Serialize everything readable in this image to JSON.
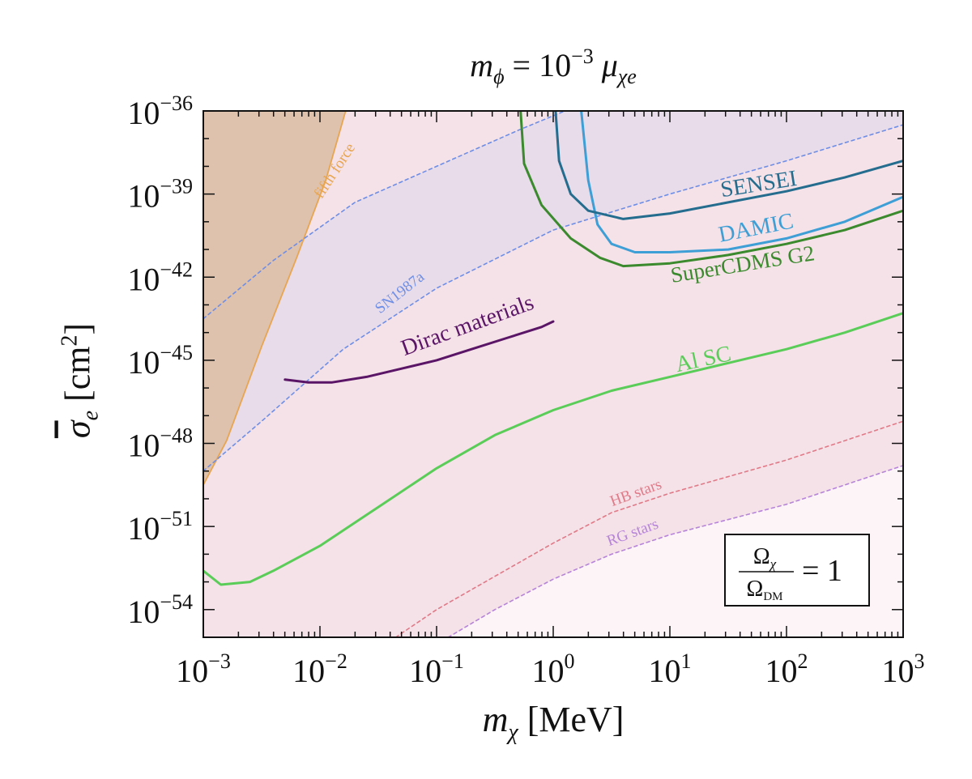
{
  "chart_data": {
    "type": "line",
    "title": {
      "base": "m",
      "sub": "ϕ",
      "middle": " = 10",
      "exp": "−3",
      "mu": " μ",
      "mu_sub": "χe"
    },
    "xlabel": {
      "base": "m",
      "sub": "χ",
      "unit": " [MeV]"
    },
    "ylabel": {
      "base": "σ",
      "sub": "e",
      "unit": " [cm",
      "exp": "2",
      "close": "]"
    },
    "x_scale": "log",
    "y_scale": "log",
    "xlim_log10": [
      -3,
      3
    ],
    "ylim_log10": [
      -55,
      -36
    ],
    "x_ticks": [
      {
        "log": -3,
        "base": "10",
        "exp": "−3"
      },
      {
        "log": -2,
        "base": "10",
        "exp": "−2"
      },
      {
        "log": -1,
        "base": "10",
        "exp": "−1"
      },
      {
        "log": 0,
        "base": "10",
        "exp": "0"
      },
      {
        "log": 1,
        "base": "10",
        "exp": "1"
      },
      {
        "log": 2,
        "base": "10",
        "exp": "2"
      },
      {
        "log": 3,
        "base": "10",
        "exp": "3"
      }
    ],
    "y_ticks": [
      {
        "log": -36,
        "base": "10",
        "exp": "−36"
      },
      {
        "log": -39,
        "base": "10",
        "exp": "−39"
      },
      {
        "log": -42,
        "base": "10",
        "exp": "−42"
      },
      {
        "log": -45,
        "base": "10",
        "exp": "−45"
      },
      {
        "log": -48,
        "base": "10",
        "exp": "−48"
      },
      {
        "log": -51,
        "base": "10",
        "exp": "−51"
      },
      {
        "log": -54,
        "base": "10",
        "exp": "−54"
      }
    ],
    "colors": {
      "background_region": "#f5e1e8",
      "fifth_force_fill": "#dfc2ad",
      "fifth_force_line": "#e8a550",
      "sn_fill": "#e8dcea",
      "sn_line": "#6e8ee6",
      "hb_line": "#e07a87",
      "rg_line": "#b684d8",
      "rg_fill": "#fdf4f8",
      "sensei": "#256d8f",
      "damic": "#3d9fd6",
      "supercdms": "#3b8a2d",
      "al_sc": "#5acd58",
      "dirac": "#5b1567"
    },
    "series": [
      {
        "name": "fifth force",
        "style": "solid-boundary",
        "color": "#e8a550",
        "points": [
          [
            -3,
            -49.5
          ],
          [
            -2.8,
            -47.9
          ],
          [
            -2.5,
            -44.5
          ],
          [
            -2.2,
            -41.3
          ],
          [
            -1.95,
            -38.5
          ],
          [
            -1.78,
            -36
          ]
        ]
      },
      {
        "name": "SN1987a (upper)",
        "style": "dashed",
        "color": "#6e8ee6",
        "points": [
          [
            -3,
            -43.5
          ],
          [
            -2.4,
            -41.4
          ],
          [
            -1.7,
            -39.3
          ],
          [
            -1.0,
            -38.0
          ],
          [
            -0.3,
            -36.7
          ],
          [
            0.1,
            -36.0
          ]
        ]
      },
      {
        "name": "SN1987a (lower)",
        "style": "dashed",
        "color": "#6e8ee6",
        "points": [
          [
            -3,
            -49.0
          ],
          [
            -2.5,
            -47.2
          ],
          [
            -1.8,
            -44.6
          ],
          [
            -1.0,
            -42.4
          ],
          [
            0,
            -40.3
          ],
          [
            1,
            -39.0
          ],
          [
            2,
            -37.8
          ],
          [
            3,
            -36.5
          ]
        ]
      },
      {
        "name": "HB stars",
        "style": "dashed",
        "color": "#e07a87",
        "points": [
          [
            -1.35,
            -55
          ],
          [
            -1.0,
            -54.0
          ],
          [
            -0.5,
            -52.8
          ],
          [
            0,
            -51.6
          ],
          [
            0.5,
            -50.5
          ],
          [
            1,
            -49.8
          ],
          [
            2,
            -48.6
          ],
          [
            3,
            -47.2
          ]
        ]
      },
      {
        "name": "RG stars",
        "style": "dashed",
        "color": "#b684d8",
        "points": [
          [
            -0.9,
            -55
          ],
          [
            -0.5,
            -54.0
          ],
          [
            0,
            -52.9
          ],
          [
            0.5,
            -52.0
          ],
          [
            1,
            -51.3
          ],
          [
            2,
            -50.2
          ],
          [
            3,
            -48.8
          ]
        ]
      },
      {
        "name": "Dirac materials",
        "style": "solid",
        "color": "#5b1567",
        "points": [
          [
            -2.3,
            -45.7
          ],
          [
            -2.1,
            -45.8
          ],
          [
            -1.9,
            -45.8
          ],
          [
            -1.6,
            -45.6
          ],
          [
            -1.3,
            -45.3
          ],
          [
            -1.0,
            -45.0
          ],
          [
            -0.7,
            -44.6
          ],
          [
            -0.4,
            -44.2
          ],
          [
            -0.1,
            -43.8
          ],
          [
            0,
            -43.6
          ]
        ]
      },
      {
        "name": "Al SC",
        "style": "solid",
        "color": "#5acd58",
        "points": [
          [
            -3,
            -52.6
          ],
          [
            -2.85,
            -53.1
          ],
          [
            -2.6,
            -53.0
          ],
          [
            -2.4,
            -52.6
          ],
          [
            -2.0,
            -51.7
          ],
          [
            -1.5,
            -50.3
          ],
          [
            -1.0,
            -48.9
          ],
          [
            -0.5,
            -47.7
          ],
          [
            0,
            -46.8
          ],
          [
            0.5,
            -46.1
          ],
          [
            1,
            -45.6
          ],
          [
            1.5,
            -45.1
          ],
          [
            2,
            -44.6
          ],
          [
            2.5,
            -44.0
          ],
          [
            3,
            -43.3
          ]
        ]
      },
      {
        "name": "SuperCDMS G2",
        "style": "solid",
        "color": "#3b8a2d",
        "points": [
          [
            -0.28,
            -36
          ],
          [
            -0.25,
            -37.9
          ],
          [
            -0.1,
            -39.4
          ],
          [
            0.15,
            -40.6
          ],
          [
            0.4,
            -41.3
          ],
          [
            0.6,
            -41.6
          ],
          [
            1.0,
            -41.5
          ],
          [
            1.5,
            -41.2
          ],
          [
            2.0,
            -40.8
          ],
          [
            2.5,
            -40.3
          ],
          [
            3,
            -39.6
          ]
        ]
      },
      {
        "name": "DAMIC",
        "style": "solid",
        "color": "#3d9fd6",
        "points": [
          [
            0.24,
            -36
          ],
          [
            0.3,
            -38.5
          ],
          [
            0.38,
            -40.1
          ],
          [
            0.5,
            -40.8
          ],
          [
            0.7,
            -41.1
          ],
          [
            1.0,
            -41.1
          ],
          [
            1.5,
            -41.0
          ],
          [
            2.0,
            -40.6
          ],
          [
            2.5,
            -40.0
          ],
          [
            3,
            -39.1
          ]
        ]
      },
      {
        "name": "SENSEI",
        "style": "solid",
        "color": "#256d8f",
        "points": [
          [
            0.02,
            -36
          ],
          [
            0.05,
            -37.8
          ],
          [
            0.15,
            -39.0
          ],
          [
            0.3,
            -39.6
          ],
          [
            0.6,
            -39.9
          ],
          [
            1.0,
            -39.7
          ],
          [
            1.5,
            -39.3
          ],
          [
            2.0,
            -38.9
          ],
          [
            2.5,
            -38.4
          ],
          [
            3,
            -37.8
          ]
        ]
      }
    ],
    "annotations": {
      "fifth_force": "fifth force",
      "sn": "SN1987a",
      "hb": "HB stars",
      "rg": "RG stars",
      "dirac": "Dirac materials",
      "al_sc": "Al SC",
      "supercdms": "SuperCDMS G2",
      "damic": "DAMIC",
      "sensei": "SENSEI"
    },
    "legend_box": {
      "numerator": "Ω",
      "num_sub": "χ",
      "denominator": "Ω",
      "den_sub": "DM",
      "equals": "= 1",
      "placement": "bottom-right"
    }
  }
}
